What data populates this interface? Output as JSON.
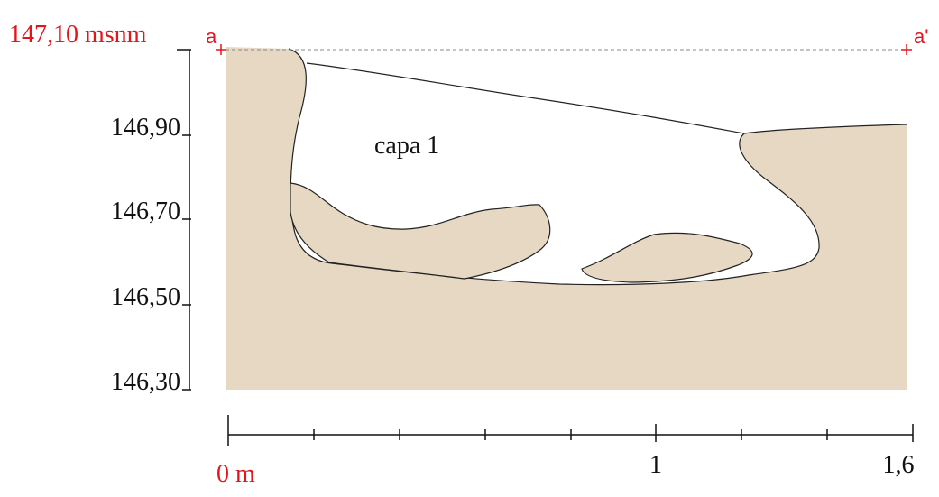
{
  "datum": {
    "label": "147,10 msnm"
  },
  "section_points": {
    "start": "a",
    "end": "a'"
  },
  "elevation_scale": {
    "labels": [
      "146,90",
      "146,70",
      "146,50",
      "146,30"
    ]
  },
  "layers": [
    {
      "label": "capa 1"
    }
  ],
  "distance_scale": {
    "labels": [
      "0 m",
      "1",
      "1,6"
    ]
  }
}
